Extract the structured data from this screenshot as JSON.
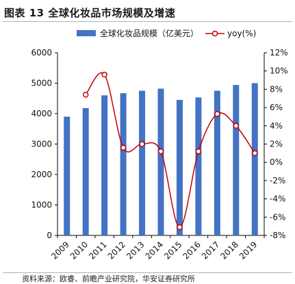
{
  "title": "图表 13 全球化妆品市场规模及增速",
  "source": "资料来源：欧睿、前瞻产业研究院，华安证券研究所",
  "colors": {
    "bar": "#4472C4",
    "line": "#C00000"
  },
  "chart_data": {
    "type": "bar",
    "categories": [
      "2009",
      "2010",
      "2011",
      "2012",
      "2013",
      "2014",
      "2015",
      "2016",
      "2017",
      "2018",
      "2019"
    ],
    "series": [
      {
        "name": "全球化妆品规模（亿美元）",
        "type": "bar",
        "axis": "left",
        "values": [
          3900,
          4180,
          4600,
          4670,
          4750,
          4820,
          4450,
          4530,
          4750,
          4940,
          5000
        ]
      },
      {
        "name": "yoy(%)",
        "type": "line",
        "axis": "right",
        "smooth": true,
        "values": [
          null,
          7.4,
          9.6,
          1.6,
          2.0,
          1.2,
          -7.1,
          1.2,
          5.3,
          4.0,
          1.0
        ]
      }
    ],
    "ylim": [
      0,
      6000
    ],
    "y_ticks": [
      "0",
      "1000",
      "2000",
      "3000",
      "4000",
      "5000",
      "6000"
    ],
    "y2lim": [
      -8,
      12
    ],
    "y2_ticks": [
      "-8%",
      "-6%",
      "-4%",
      "-2%",
      "0%",
      "2%",
      "4%",
      "6%",
      "8%",
      "10%",
      "12%"
    ],
    "grid": false,
    "legend_position": "top"
  }
}
